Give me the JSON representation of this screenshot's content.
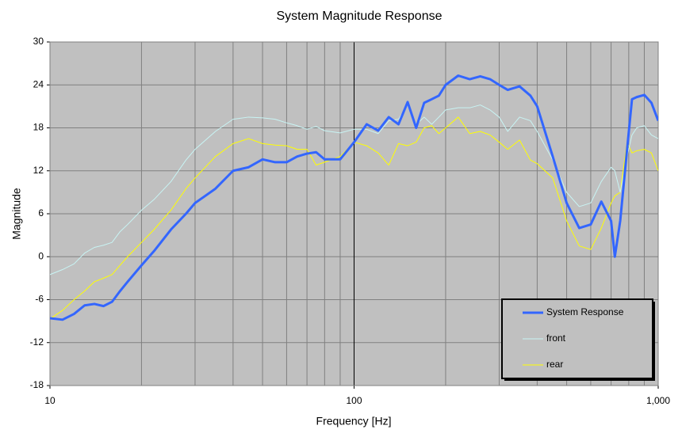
{
  "chart_data": {
    "type": "line",
    "title": "System Magnitude Response",
    "x_label": "Frequency [Hz]",
    "y_label": "Magnitude",
    "x_scale": "log",
    "xlim": [
      10,
      1000
    ],
    "xticks": [
      10,
      100,
      {
        "value": 1000,
        "label": "1,000"
      }
    ],
    "ylim": [
      -18,
      30
    ],
    "yticks": [
      -18,
      -12,
      -6,
      0,
      6,
      12,
      18,
      24,
      30
    ],
    "grid": true,
    "minor_grid": true,
    "legend": "lower right",
    "plot_background": "#c0c0c0",
    "x": [
      10,
      11,
      12,
      13,
      14,
      15,
      16,
      17,
      18,
      20,
      22,
      25,
      28,
      30,
      35,
      40,
      45,
      50,
      55,
      60,
      65,
      70,
      75,
      80,
      90,
      100,
      110,
      120,
      130,
      140,
      150,
      160,
      170,
      180,
      190,
      200,
      220,
      240,
      260,
      280,
      300,
      320,
      350,
      380,
      400,
      450,
      500,
      550,
      600,
      650,
      700,
      720,
      750,
      790,
      820,
      850,
      900,
      950,
      1000
    ],
    "series": [
      {
        "name": "System Response",
        "color": "#3366ff",
        "width": 3,
        "values": [
          -8.6,
          -8.8,
          -8.0,
          -6.8,
          -6.6,
          -6.9,
          -6.3,
          -4.8,
          -3.5,
          -1.2,
          0.8,
          3.8,
          6.0,
          7.5,
          9.5,
          12,
          12.5,
          13.6,
          13.2,
          13.2,
          14,
          14.4,
          14.6,
          13.6,
          13.6,
          16,
          18.5,
          17.6,
          19.5,
          18.5,
          21.6,
          18,
          21.5,
          22,
          22.5,
          24,
          25.3,
          24.8,
          25.2,
          24.8,
          24,
          23.3,
          23.8,
          22.5,
          21,
          14,
          7.5,
          4,
          4.5,
          7.7,
          5,
          0,
          5,
          15,
          22,
          22.3,
          22.6,
          21.5,
          19
        ]
      },
      {
        "name": "front",
        "color": "#c8f4f4",
        "width": 1,
        "values": [
          -2.5,
          -1.8,
          -1.0,
          0.5,
          1.3,
          1.6,
          2.0,
          3.5,
          4.5,
          6.5,
          8.0,
          10.5,
          13.5,
          15.0,
          17.5,
          19.2,
          19.5,
          19.4,
          19.2,
          18.7,
          18.3,
          17.8,
          18.2,
          17.6,
          17.3,
          17.8,
          17.8,
          17.2,
          19.0,
          19.2,
          21.2,
          18.5,
          19.5,
          18.5,
          19.5,
          20.5,
          20.8,
          20.8,
          21.2,
          20.5,
          19.5,
          17.5,
          19.5,
          19.0,
          17.5,
          13.5,
          9.0,
          7.0,
          7.5,
          10.5,
          12.5,
          12.0,
          9.0,
          14.0,
          17.0,
          18.0,
          18.3,
          17.0,
          16.5
        ]
      },
      {
        "name": "rear",
        "color": "#ffff00",
        "width": 1,
        "values": [
          -8.7,
          -7.5,
          -6.0,
          -4.8,
          -3.5,
          -3.0,
          -2.5,
          -1.2,
          0,
          2,
          3.8,
          6.5,
          9.5,
          11,
          14,
          15.8,
          16.5,
          15.8,
          15.6,
          15.5,
          15,
          15,
          12.8,
          13.2,
          14,
          16,
          15.5,
          14.5,
          12.8,
          15.8,
          15.5,
          16,
          18,
          18.3,
          17.2,
          18,
          19.5,
          17.2,
          17.5,
          17,
          16,
          15,
          16.3,
          13.5,
          13,
          11,
          5,
          1.5,
          1,
          4,
          7.5,
          8.5,
          9,
          16,
          14.5,
          14.8,
          15,
          14.5,
          12
        ]
      }
    ]
  }
}
